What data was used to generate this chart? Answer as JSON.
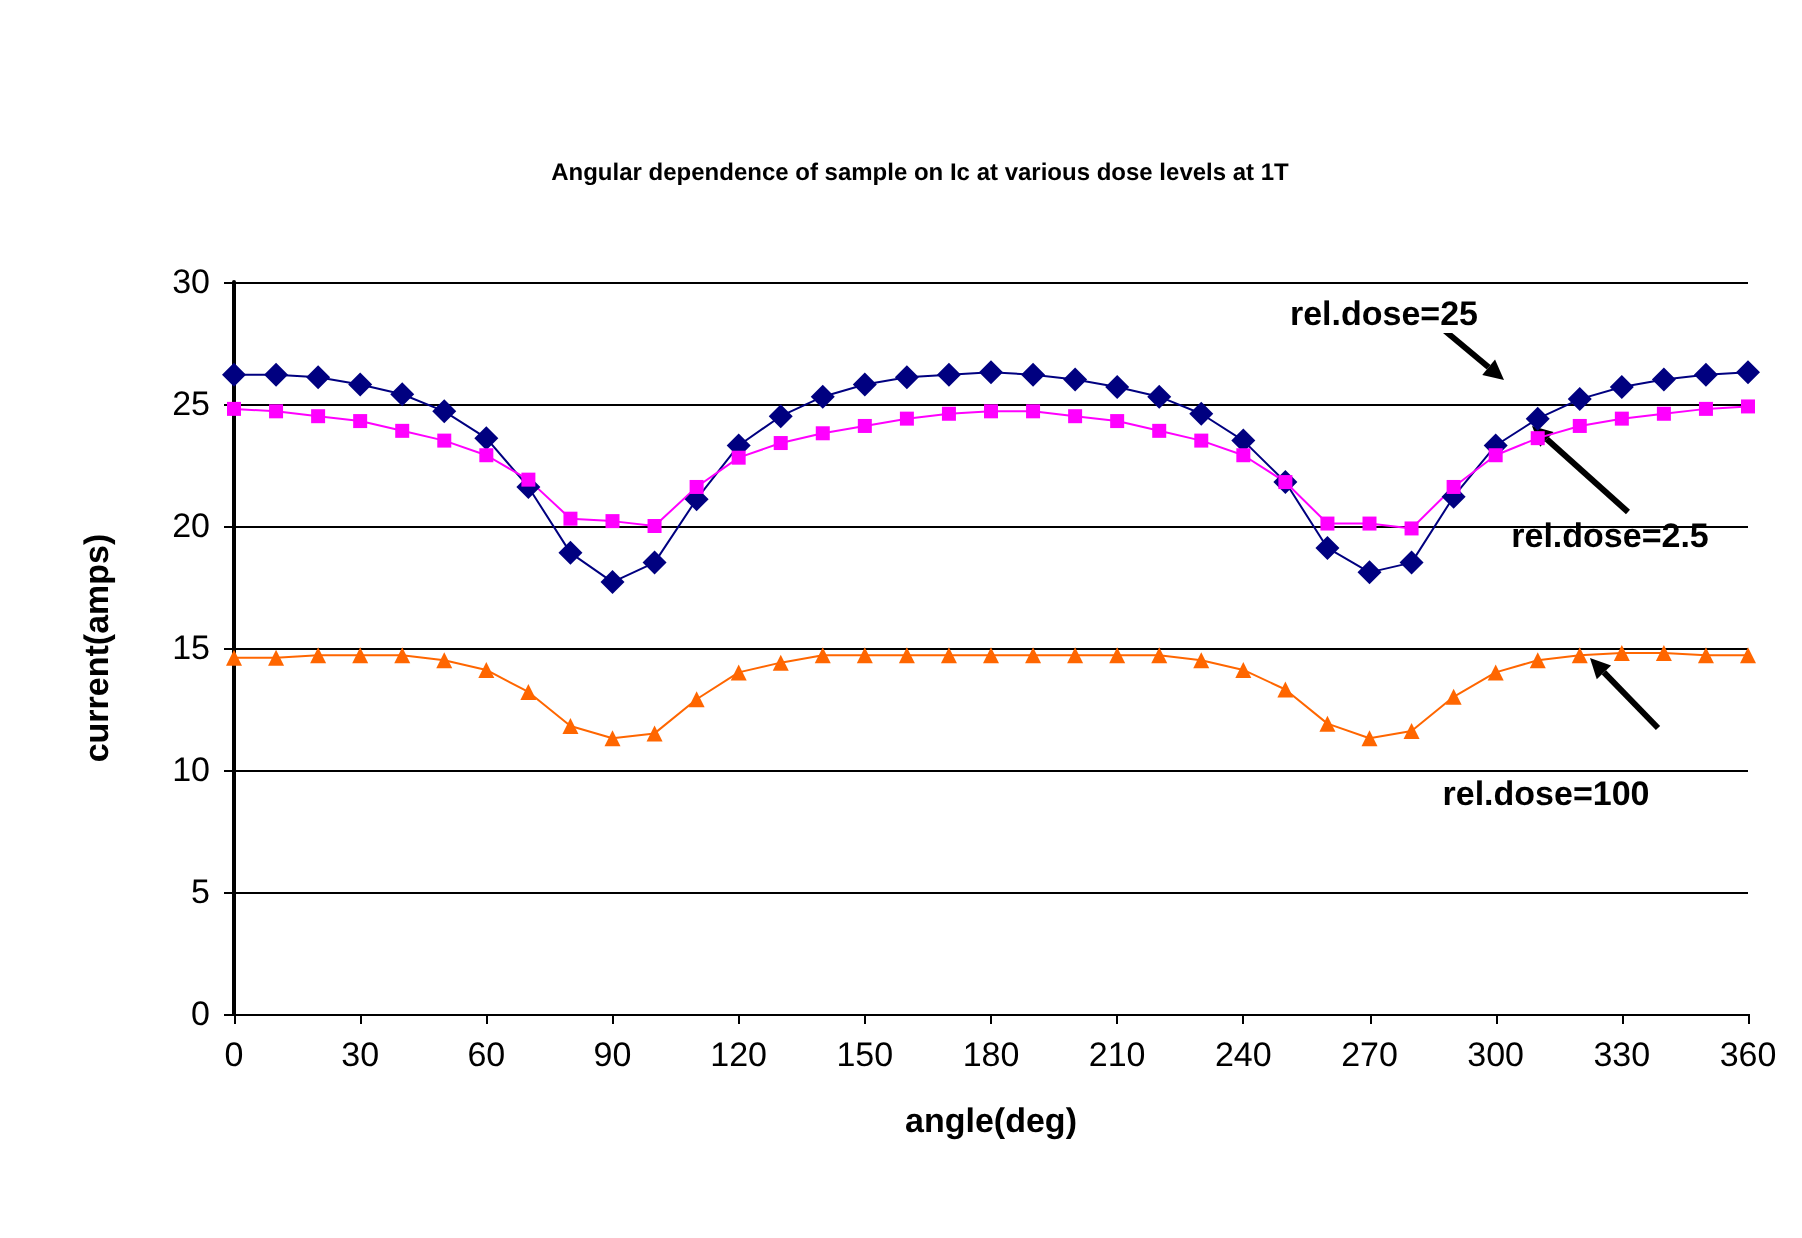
{
  "chart_data": {
    "type": "line",
    "title": "Angular dependence of sample on Ic at various dose levels at 1T",
    "xlabel": "angle(deg)",
    "ylabel": "current(amps)",
    "x": [
      0,
      10,
      20,
      30,
      40,
      50,
      60,
      70,
      80,
      90,
      100,
      110,
      120,
      130,
      140,
      150,
      160,
      170,
      180,
      190,
      200,
      210,
      220,
      230,
      240,
      250,
      260,
      270,
      280,
      290,
      300,
      310,
      320,
      330,
      340,
      350,
      360
    ],
    "series": [
      {
        "name": "rel.dose=25",
        "color": "#000080",
        "marker": "diamond",
        "values": [
          26.2,
          26.2,
          26.1,
          25.8,
          25.4,
          24.7,
          23.6,
          21.6,
          18.9,
          17.7,
          18.5,
          21.1,
          23.3,
          24.5,
          25.3,
          25.8,
          26.1,
          26.2,
          26.3,
          26.2,
          26.0,
          25.7,
          25.3,
          24.6,
          23.5,
          21.8,
          19.1,
          18.1,
          18.5,
          21.2,
          23.3,
          24.4,
          25.2,
          25.7,
          26.0,
          26.2,
          26.3
        ]
      },
      {
        "name": "rel.dose=2.5",
        "color": "#ff00ff",
        "marker": "square",
        "values": [
          24.8,
          24.7,
          24.5,
          24.3,
          23.9,
          23.5,
          22.9,
          21.9,
          20.3,
          20.2,
          20.0,
          21.6,
          22.8,
          23.4,
          23.8,
          24.1,
          24.4,
          24.6,
          24.7,
          24.7,
          24.5,
          24.3,
          23.9,
          23.5,
          22.9,
          21.8,
          20.1,
          20.1,
          19.9,
          21.6,
          22.9,
          23.6,
          24.1,
          24.4,
          24.6,
          24.8,
          24.9
        ]
      },
      {
        "name": "rel.dose=100",
        "color": "#ff6600",
        "marker": "triangle",
        "values": [
          14.6,
          14.6,
          14.7,
          14.7,
          14.7,
          14.5,
          14.1,
          13.2,
          11.8,
          11.3,
          11.5,
          12.9,
          14.0,
          14.4,
          14.7,
          14.7,
          14.7,
          14.7,
          14.7,
          14.7,
          14.7,
          14.7,
          14.7,
          14.5,
          14.1,
          13.3,
          11.9,
          11.3,
          11.6,
          13.0,
          14.0,
          14.5,
          14.7,
          14.8,
          14.8,
          14.7,
          14.7
        ]
      }
    ],
    "xlim": [
      0,
      360
    ],
    "xticks": [
      0,
      30,
      60,
      90,
      120,
      150,
      180,
      210,
      240,
      270,
      300,
      330,
      360
    ],
    "ylim": [
      0,
      30
    ],
    "yticks": [
      0,
      5,
      10,
      15,
      20,
      25,
      30
    ],
    "grid": "y",
    "legend": false,
    "line_style": "solid"
  }
}
